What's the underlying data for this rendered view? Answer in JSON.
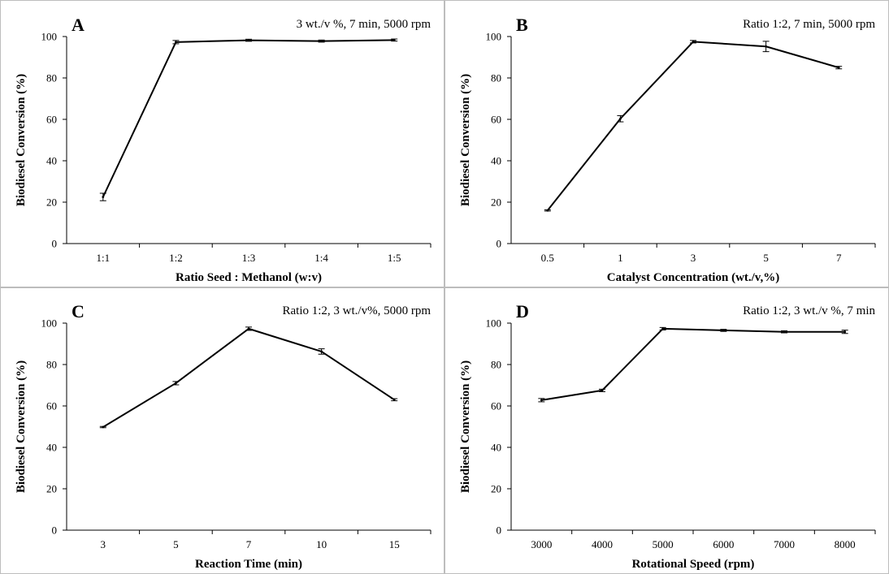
{
  "chart_data": [
    {
      "type": "line",
      "panel_letter": "A",
      "annotation": "3 wt./v %, 7 min, 5000 rpm",
      "xlabel": "Ratio Seed : Methanol (w:v)",
      "ylabel": "Biodiesel Conversion (%)",
      "categories": [
        "1:1",
        "1:2",
        "1:3",
        "1:4",
        "1:5"
      ],
      "values": [
        22.5,
        97.3,
        98.2,
        97.8,
        98.3
      ],
      "errors": [
        1.8,
        0.8,
        0.5,
        0.5,
        0.5
      ],
      "ylim": [
        0,
        100
      ],
      "yticks": [
        0,
        20,
        40,
        60,
        80,
        100
      ],
      "grid": false,
      "color": "#000000"
    },
    {
      "type": "line",
      "panel_letter": "B",
      "annotation": "Ratio 1:2, 7 min, 5000 rpm",
      "xlabel": "Catalyst Concentration (wt./v,%)",
      "ylabel": "Biodiesel Conversion (%)",
      "categories": [
        "0.5",
        "1",
        "3",
        "5",
        "7"
      ],
      "values": [
        16.0,
        60.3,
        97.5,
        95.2,
        85.0
      ],
      "errors": [
        0.3,
        1.5,
        0.6,
        2.5,
        0.6
      ],
      "ylim": [
        0,
        100
      ],
      "yticks": [
        0,
        20,
        40,
        60,
        80,
        100
      ],
      "grid": false,
      "color": "#000000"
    },
    {
      "type": "line",
      "panel_letter": "C",
      "annotation": "Ratio 1:2, 3 wt./v%, 5000 rpm",
      "xlabel": "Reaction Time (min)",
      "ylabel": "Biodiesel Conversion (%)",
      "categories": [
        "3",
        "5",
        "7",
        "10",
        "15"
      ],
      "values": [
        49.8,
        71.0,
        97.3,
        86.3,
        63.0
      ],
      "errors": [
        0.3,
        0.8,
        0.8,
        1.3,
        0.5
      ],
      "ylim": [
        0,
        100
      ],
      "yticks": [
        0,
        20,
        40,
        60,
        80,
        100
      ],
      "grid": false,
      "color": "#000000"
    },
    {
      "type": "line",
      "panel_letter": "D",
      "annotation": "Ratio 1:2, 3 wt./v %, 7 min",
      "xlabel": "Rotational Speed (rpm)",
      "ylabel": "Biodiesel Conversion (%)",
      "categories": [
        "3000",
        "4000",
        "5000",
        "6000",
        "7000",
        "8000"
      ],
      "values": [
        62.8,
        67.5,
        97.3,
        96.5,
        95.8,
        95.8
      ],
      "errors": [
        0.8,
        0.6,
        0.6,
        0.5,
        0.5,
        0.8
      ],
      "ylim": [
        0,
        100
      ],
      "yticks": [
        0,
        20,
        40,
        60,
        80,
        100
      ],
      "grid": false,
      "color": "#000000"
    }
  ]
}
